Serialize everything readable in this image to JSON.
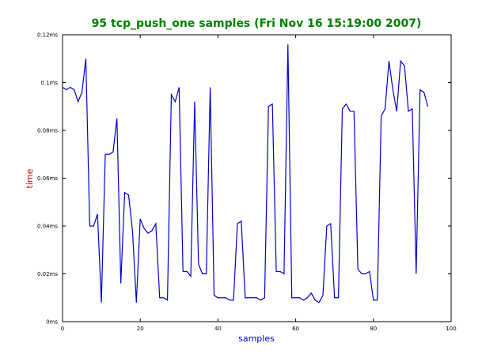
{
  "chart_data": {
    "type": "line",
    "title": "95 tcp_push_one samples (Fri Nov 16 15:19:00 2007)",
    "xlabel": "samples",
    "ylabel": "time",
    "xlim": [
      0,
      100
    ],
    "ylim": [
      0,
      0.12
    ],
    "x_ticks": [
      0,
      20,
      40,
      60,
      80,
      100
    ],
    "x_tick_labels": [
      "0",
      "20",
      "40",
      "60",
      "80",
      "100"
    ],
    "y_ticks": [
      0,
      0.02,
      0.04,
      0.06,
      0.08,
      0.1,
      0.12
    ],
    "y_tick_labels": [
      "0ms",
      "0.02ms",
      "0.04ms",
      "0.06ms",
      "0.08ms",
      "0.1ms",
      "0.12ms"
    ],
    "grid": false,
    "series": [
      {
        "x": [
          0,
          1,
          2,
          3,
          4,
          5,
          6,
          7,
          8,
          9,
          10,
          11,
          12,
          13,
          14,
          15,
          16,
          17,
          18,
          19,
          20,
          21,
          22,
          23,
          24,
          25,
          26,
          27,
          28,
          29,
          30,
          31,
          32,
          33,
          34,
          35,
          36,
          37,
          38,
          39,
          40,
          41,
          42,
          43,
          44,
          45,
          46,
          47,
          48,
          49,
          50,
          51,
          52,
          53,
          54,
          55,
          56,
          57,
          58,
          59,
          60,
          61,
          62,
          63,
          64,
          65,
          66,
          67,
          68,
          69,
          70,
          71,
          72,
          73,
          74,
          75,
          76,
          77,
          78,
          79,
          80,
          81,
          82,
          83,
          84,
          85,
          86,
          87,
          88,
          89,
          90,
          91,
          92,
          93,
          94
        ],
        "values": [
          0.098,
          0.097,
          0.098,
          0.097,
          0.092,
          0.096,
          0.11,
          0.04,
          0.04,
          0.045,
          0.008,
          0.07,
          0.07,
          0.071,
          0.085,
          0.016,
          0.054,
          0.053,
          0.038,
          0.008,
          0.043,
          0.039,
          0.037,
          0.038,
          0.041,
          0.01,
          0.01,
          0.009,
          0.095,
          0.092,
          0.098,
          0.021,
          0.021,
          0.019,
          0.092,
          0.024,
          0.02,
          0.02,
          0.098,
          0.011,
          0.01,
          0.01,
          0.01,
          0.009,
          0.009,
          0.041,
          0.042,
          0.01,
          0.01,
          0.01,
          0.01,
          0.009,
          0.01,
          0.09,
          0.091,
          0.021,
          0.021,
          0.02,
          0.116,
          0.01,
          0.01,
          0.01,
          0.009,
          0.01,
          0.012,
          0.009,
          0.008,
          0.011,
          0.04,
          0.041,
          0.01,
          0.01,
          0.089,
          0.091,
          0.088,
          0.088,
          0.022,
          0.02,
          0.02,
          0.021,
          0.009,
          0.009,
          0.086,
          0.089,
          0.109,
          0.097,
          0.088,
          0.109,
          0.107,
          0.088,
          0.089,
          0.02,
          0.097,
          0.096,
          0.09
        ]
      }
    ],
    "colors": {
      "line": "#0000cc",
      "title": "#008000",
      "xlabel": "#0000cc",
      "ylabel": "#cc0000",
      "axes": "#000000",
      "background": "#ffffff"
    }
  }
}
